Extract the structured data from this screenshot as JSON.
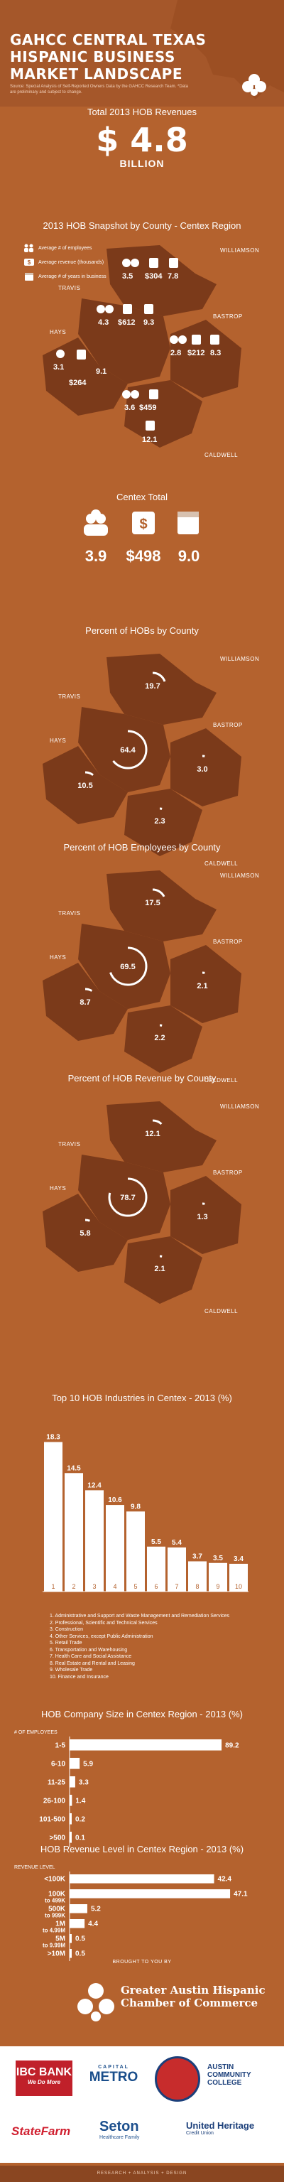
{
  "header": {
    "title": "GAHCC CENTRAL TEXAS HISPANIC BUSINESS MARKET LANDSCAPE",
    "subtitle": "Source: Special Analysis of Self-Reported Owners Data by the GAHCC Research Team. *Data are preliminary and subject to change."
  },
  "revenue": {
    "label": "Total 2013 HOB Revenues",
    "value": "$ 4.8",
    "unit": "BILLION"
  },
  "snapshot": {
    "title": "2013 HOB Snapshot by County - Centex Region",
    "legend": [
      "Average # of employees",
      "Average revenue (thousands)",
      "Average # of years in business"
    ],
    "counties": [
      {
        "name": "WILLIAMSON",
        "employees": "3.5",
        "revenue": "$304",
        "years": "7.8"
      },
      {
        "name": "TRAVIS",
        "employees": "4.3",
        "revenue": "$612",
        "years": "9.3"
      },
      {
        "name": "BASTROP",
        "employees": "2.8",
        "revenue": "$212",
        "years": "8.3"
      },
      {
        "name": "HAYS",
        "employees": "3.1",
        "revenue": "$264",
        "years": "9.1"
      },
      {
        "name": "CALDWELL",
        "employees": "3.6",
        "revenue": "$459",
        "years": "12.1"
      }
    ]
  },
  "centex": {
    "title": "Centex Total",
    "employees": "3.9",
    "revenue": "$498",
    "years": "9.0"
  },
  "pct_hobs": {
    "title": "Percent of HOBs by County",
    "values": {
      "williamson": "19.7",
      "travis": "64.4",
      "bastrop": "3.0",
      "hays": "10.5",
      "caldwell": "2.3"
    }
  },
  "pct_employees": {
    "title": "Percent of HOB Employees by County",
    "values": {
      "williamson": "17.5",
      "travis": "69.5",
      "bastrop": "2.1",
      "hays": "8.7",
      "caldwell": "2.2"
    }
  },
  "pct_revenue": {
    "title": "Percent of HOB Revenue by County",
    "values": {
      "williamson": "12.1",
      "travis": "78.7",
      "bastrop": "1.3",
      "hays": "5.8",
      "caldwell": "2.1"
    }
  },
  "county_names": {
    "williamson": "WILLIAMSON",
    "travis": "TRAVIS",
    "bastrop": "BASTROP",
    "hays": "HAYS",
    "caldwell": "CALDWELL"
  },
  "chart_data": [
    {
      "type": "bar",
      "title": "Top 10 HOB Industries in Centex - 2013 (%)",
      "categories": [
        "1",
        "2",
        "3",
        "4",
        "5",
        "6",
        "7",
        "8",
        "9",
        "10"
      ],
      "values": [
        18.3,
        14.5,
        12.4,
        10.6,
        9.8,
        5.5,
        5.4,
        3.7,
        3.5,
        3.4
      ],
      "ylim": [
        0,
        20
      ],
      "industries": [
        "1. Administrative and Support and Waste Management and Remediation Services",
        "2. Professional, Scientific and Technical Services",
        "3. Construction",
        "4. Other Services, except Public Administration",
        "5. Retail Trade",
        "6. Transportation and Warehousing",
        "7. Health Care and Social Assistance",
        "8. Real Estate and Rental and Leasing",
        "9. Wholesale Trade",
        "10. Finance and Insurance"
      ]
    },
    {
      "type": "bar",
      "title": "HOB Company Size in Centex Region - 2013 (%)",
      "axis_label": "# OF EMPLOYEES",
      "categories": [
        "1-5",
        "6-10",
        "11-25",
        "26-100",
        "101-500",
        ">500"
      ],
      "values": [
        89.2,
        5.9,
        3.3,
        1.4,
        0.2,
        0.1
      ],
      "xlim": [
        0,
        100
      ]
    },
    {
      "type": "bar",
      "title": "HOB Revenue Level in Centex Region - 2013 (%)",
      "axis_label": "REVENUE LEVEL",
      "categories": [
        "<100K",
        "100K to 499K",
        "500K to 999K",
        "1M to 4.99M",
        "5M to 9.99M",
        ">10M"
      ],
      "values": [
        42.4,
        47.1,
        5.2,
        4.4,
        0.5,
        0.5
      ],
      "xlim": [
        0,
        50
      ]
    }
  ],
  "brought": "BROUGHT TO YOU BY",
  "ghcc": "Greater Austin Hispanic Chamber of Commerce",
  "sponsors": {
    "ibc": "IBC BANK",
    "ibc_tag": "We Do More",
    "capmetro": "METRO",
    "capmetro_top": "CAPITAL",
    "acc": "AUSTIN COMMUNITY COLLEGE",
    "statefarm": "StateFarm",
    "seton": "Seton",
    "seton_tag": "Healthcare Family",
    "uh": "United Heritage",
    "uh_tag": "Credit Union"
  },
  "footer": "RESEARCH + ANALYSIS + DESIGN",
  "colors": {
    "bg": "#b4622e",
    "shape": "#7b3a1a",
    "white": "#ffffff"
  }
}
